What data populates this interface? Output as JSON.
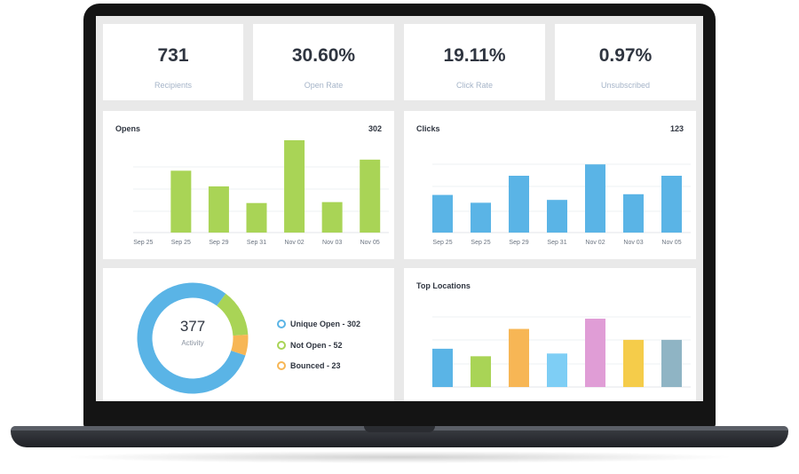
{
  "stats": [
    {
      "value": "731",
      "label": "Recipients"
    },
    {
      "value": "30.60%",
      "label": "Open Rate"
    },
    {
      "value": "19.11%",
      "label": "Click Rate"
    },
    {
      "value": "0.97%",
      "label": "Unsubscribed"
    }
  ],
  "opens": {
    "title": "Opens",
    "total": "302"
  },
  "clicks": {
    "title": "Clicks",
    "total": "123"
  },
  "activity": {
    "value": "377",
    "label": "Activity"
  },
  "legend": [
    {
      "label": "Unique Open - 302",
      "color": "#5ab4e6"
    },
    {
      "label": "Not Open - 52",
      "color": "#a9d456"
    },
    {
      "label": "Bounced - 23",
      "color": "#f7b655"
    }
  ],
  "locations": {
    "title": "Top Locations"
  },
  "chart_data": [
    {
      "type": "bar",
      "title": "Opens",
      "categories": [
        "Sep 25",
        "Sep 25",
        "Sep 29",
        "Sep 31",
        "Nov 02",
        "Nov 03",
        "Nov 05"
      ],
      "values": [
        0,
        67,
        50,
        32,
        100,
        33,
        79
      ],
      "color": "#a9d456"
    },
    {
      "type": "bar",
      "title": "Clicks",
      "categories": [
        "Sep 25",
        "Sep 25",
        "Sep 29",
        "Sep 31",
        "Nov 02",
        "Nov 03",
        "Nov 05"
      ],
      "values": [
        53,
        42,
        80,
        46,
        96,
        54,
        80
      ],
      "color": "#5ab4e6"
    },
    {
      "type": "bar",
      "title": "Top Locations",
      "values": [
        56,
        45,
        85,
        49,
        100,
        69,
        69
      ],
      "colors": [
        "#5ab4e6",
        "#a9d456",
        "#f7b655",
        "#7ecef5",
        "#e09dd6",
        "#f5cc4a",
        "#8fb4c4"
      ]
    },
    {
      "type": "pie",
      "title": "Activity",
      "values": [
        302,
        52,
        23
      ],
      "labels": [
        "Unique Open",
        "Not Open",
        "Bounced"
      ],
      "colors": [
        "#5ab4e6",
        "#a9d456",
        "#f7b655"
      ]
    }
  ]
}
